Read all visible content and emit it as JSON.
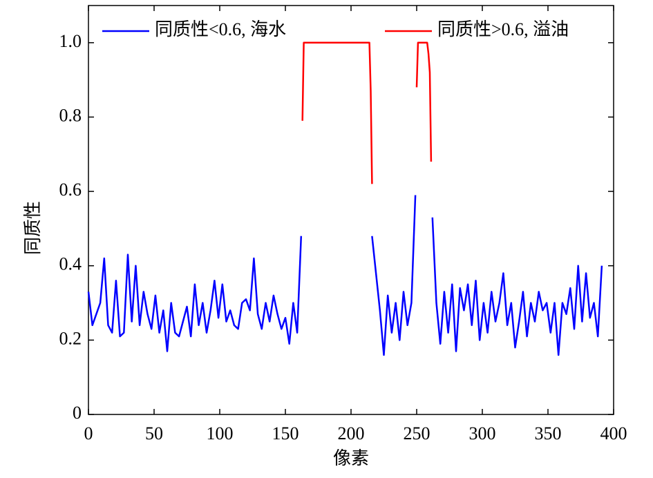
{
  "chart_data": {
    "type": "line",
    "xlabel": "像素",
    "ylabel": "同质性",
    "x": [
      0,
      3,
      6,
      9,
      12,
      15,
      18,
      21,
      24,
      27,
      30,
      33,
      36,
      39,
      42,
      45,
      48,
      51,
      54,
      57,
      60,
      63,
      66,
      69,
      72,
      75,
      78,
      81,
      84,
      87,
      90,
      93,
      96,
      99,
      102,
      105,
      108,
      111,
      114,
      117,
      120,
      123,
      126,
      129,
      132,
      135,
      138,
      141,
      144,
      147,
      150,
      153,
      156,
      159,
      162,
      163,
      164,
      180,
      200,
      214,
      215,
      216,
      219,
      222,
      225,
      228,
      231,
      234,
      237,
      240,
      243,
      246,
      249,
      250,
      251,
      258,
      259,
      260,
      261,
      262,
      265,
      268,
      271,
      274,
      277,
      280,
      283,
      286,
      289,
      292,
      295,
      298,
      301,
      304,
      307,
      310,
      313,
      316,
      319,
      322,
      325,
      328,
      331,
      334,
      337,
      340,
      343,
      346,
      349,
      352,
      355,
      358,
      361,
      364,
      367,
      370,
      373,
      376,
      379,
      382,
      385,
      388,
      391
    ],
    "series": [
      {
        "name": "同质性<0.6, 海水",
        "color": "#0000ff",
        "values": [
          0.33,
          0.24,
          0.27,
          0.3,
          0.42,
          0.24,
          0.22,
          0.36,
          0.21,
          0.22,
          0.43,
          0.25,
          0.4,
          0.24,
          0.33,
          0.27,
          0.23,
          0.32,
          0.22,
          0.28,
          0.17,
          0.3,
          0.22,
          0.21,
          0.25,
          0.29,
          0.21,
          0.35,
          0.24,
          0.3,
          0.22,
          0.28,
          0.36,
          0.26,
          0.35,
          0.25,
          0.28,
          0.24,
          0.23,
          0.3,
          0.31,
          0.28,
          0.42,
          0.27,
          0.23,
          0.3,
          0.25,
          0.32,
          0.27,
          0.23,
          0.26,
          0.19,
          0.3,
          0.22,
          0.48,
          null,
          null,
          null,
          null,
          null,
          null,
          0.48,
          0.38,
          0.28,
          0.16,
          0.32,
          0.22,
          0.3,
          0.2,
          0.33,
          0.24,
          0.3,
          0.59,
          null,
          null,
          null,
          null,
          null,
          null,
          0.53,
          0.3,
          0.19,
          0.33,
          0.22,
          0.35,
          0.17,
          0.34,
          0.28,
          0.35,
          0.24,
          0.36,
          0.2,
          0.3,
          0.22,
          0.33,
          0.25,
          0.3,
          0.38,
          0.24,
          0.3,
          0.18,
          0.25,
          0.33,
          0.21,
          0.3,
          0.25,
          0.33,
          0.28,
          0.3,
          0.22,
          0.3,
          0.16,
          0.3,
          0.27,
          0.34,
          0.23,
          0.4,
          0.25,
          0.38,
          0.26,
          0.3,
          0.21,
          0.4
        ]
      },
      {
        "name": "同质性>0.6, 溢油",
        "color": "#ff0000",
        "values": [
          null,
          null,
          null,
          null,
          null,
          null,
          null,
          null,
          null,
          null,
          null,
          null,
          null,
          null,
          null,
          null,
          null,
          null,
          null,
          null,
          null,
          null,
          null,
          null,
          null,
          null,
          null,
          null,
          null,
          null,
          null,
          null,
          null,
          null,
          null,
          null,
          null,
          null,
          null,
          null,
          null,
          null,
          null,
          null,
          null,
          null,
          null,
          null,
          null,
          null,
          null,
          null,
          null,
          null,
          null,
          0.79,
          1,
          1,
          1,
          1,
          0.87,
          0.62,
          null,
          null,
          null,
          null,
          null,
          null,
          null,
          null,
          null,
          null,
          null,
          0.88,
          1,
          1,
          0.97,
          0.92,
          0.68,
          null,
          null,
          null,
          null,
          null,
          null,
          null,
          null,
          null,
          null,
          null,
          null,
          null,
          null,
          null,
          null,
          null,
          null,
          null,
          null,
          null,
          null,
          null,
          null,
          null,
          null,
          null,
          null,
          null,
          null,
          null,
          null,
          null,
          null,
          null,
          null,
          null,
          null,
          null,
          null,
          null,
          null,
          null,
          null
        ]
      }
    ],
    "xlim": [
      0,
      400
    ],
    "xticks": [
      0,
      50,
      100,
      150,
      200,
      250,
      300,
      350,
      400
    ],
    "ylim": [
      0,
      1.1
    ],
    "yticks": [
      0,
      0.2,
      0.4,
      0.6,
      0.8,
      {
        "value": 1,
        "label": "1.0"
      }
    ],
    "legend": "top"
  }
}
